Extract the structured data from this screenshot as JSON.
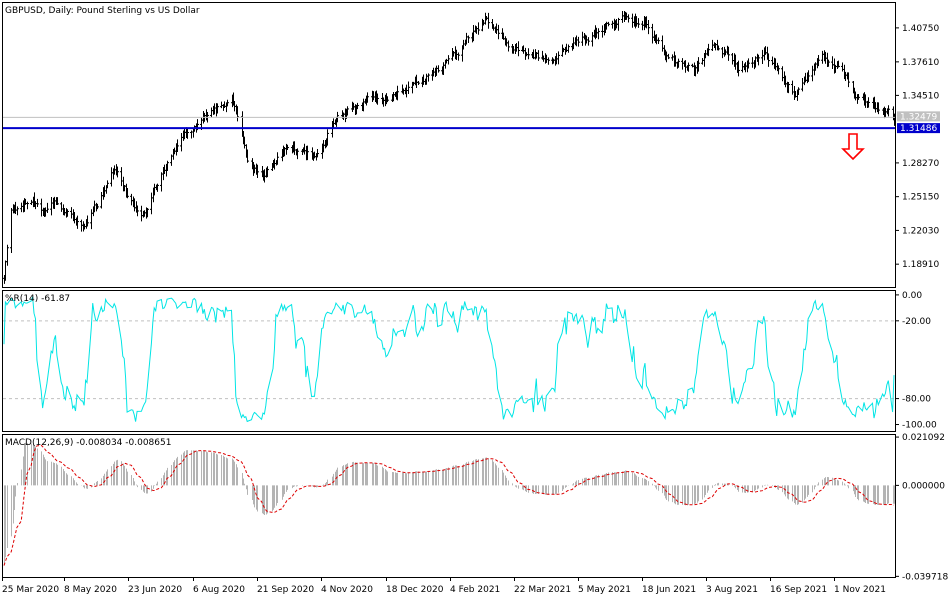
{
  "chart_data": [
    {
      "type": "candlestick",
      "title": "GBPUSD, Daily:  Pound Sterling vs US Dollar",
      "ylim": [
        1.168,
        1.4305
      ],
      "ticks": [
        "1.40750",
        "1.37610",
        "1.34510",
        "1.28270",
        "1.25150",
        "1.22030",
        "1.18910"
      ],
      "tick_values": [
        1.4075,
        1.3761,
        1.3451,
        1.2827,
        1.2515,
        1.2203,
        1.1891
      ],
      "price_labels": [
        {
          "text": "1.32479",
          "value": 1.32479,
          "bg": "#c0c0c0",
          "fg": "#ffffff"
        },
        {
          "text": "1.31486",
          "value": 1.31486,
          "bg": "#0000cc",
          "fg": "#ffffff"
        }
      ],
      "horizontal_lines": [
        {
          "value": 1.3248,
          "color": "#c0c0c0"
        },
        {
          "value": 1.3149,
          "color": "#0000cc"
        }
      ],
      "annotation": "down-arrow",
      "x_labels": [
        "25 Mar 2020",
        "8 May 2020",
        "23 Jun 2020",
        "6 Aug 2020",
        "21 Sep 2020",
        "4 Nov 2020",
        "18 Dec 2020",
        "4 Feb 2021",
        "22 Mar 2021",
        "5 May 2021",
        "18 Jun 2021",
        "3 Aug 2021",
        "16 Sep 2021",
        "1 Nov 2021"
      ],
      "close_path": [
        [
          "2020-03-25",
          1.177
        ],
        [
          "2020-03-30",
          1.24
        ],
        [
          "2020-04-14",
          1.25
        ],
        [
          "2020-04-21",
          1.232
        ],
        [
          "2020-04-29",
          1.249
        ],
        [
          "2020-05-19",
          1.22
        ],
        [
          "2020-06-04",
          1.26
        ],
        [
          "2020-06-10",
          1.275
        ],
        [
          "2020-06-29",
          1.231
        ],
        [
          "2020-07-09",
          1.26
        ],
        [
          "2020-07-29",
          1.31
        ],
        [
          "2020-08-31",
          1.343
        ],
        [
          "2020-09-11",
          1.284
        ],
        [
          "2020-09-23",
          1.274
        ],
        [
          "2020-10-09",
          1.295
        ],
        [
          "2020-10-28",
          1.29
        ],
        [
          "2020-11-10",
          1.322
        ],
        [
          "2020-12-01",
          1.338
        ],
        [
          "2020-12-15",
          1.345
        ],
        [
          "2021-01-11",
          1.36
        ],
        [
          "2021-01-25",
          1.37
        ],
        [
          "2021-02-24",
          1.415
        ],
        [
          "2021-03-15",
          1.39
        ],
        [
          "2021-04-12",
          1.375
        ],
        [
          "2021-04-26",
          1.39
        ],
        [
          "2021-06-01",
          1.42
        ],
        [
          "2021-06-16",
          1.41
        ],
        [
          "2021-06-30",
          1.38
        ],
        [
          "2021-07-20",
          1.37
        ],
        [
          "2021-08-01",
          1.39
        ],
        [
          "2021-08-20",
          1.372
        ],
        [
          "2021-09-07",
          1.385
        ],
        [
          "2021-09-29",
          1.348
        ],
        [
          "2021-10-20",
          1.38
        ],
        [
          "2021-11-01",
          1.37
        ],
        [
          "2021-11-12",
          1.342
        ],
        [
          "2021-12-01",
          1.33
        ],
        [
          "2021-12-07",
          1.322
        ]
      ]
    },
    {
      "type": "line",
      "title": "%R(14) -61.87",
      "ylim": [
        -105,
        3
      ],
      "ticks": [
        "0.00",
        "-20.00",
        "-80.00",
        "-100.00"
      ],
      "tick_values": [
        0,
        -20,
        -80,
        -100
      ],
      "levels": [
        -20,
        -80
      ],
      "line_color": "#00e5e5",
      "last_value": -61.87
    },
    {
      "type": "histogram+line",
      "title": "MACD(12,26,9) -0.008034 -0.008651",
      "ylim": [
        -0.04,
        0.022
      ],
      "ticks": [
        "0.021092",
        "0.000000",
        "-0.039718"
      ],
      "tick_values": [
        0.021092,
        0.0,
        -0.039718
      ],
      "macd_last": -0.008034,
      "signal_last": -0.008651,
      "signal_color": "#dd0000",
      "histogram_color": "#b4b4b4"
    }
  ]
}
